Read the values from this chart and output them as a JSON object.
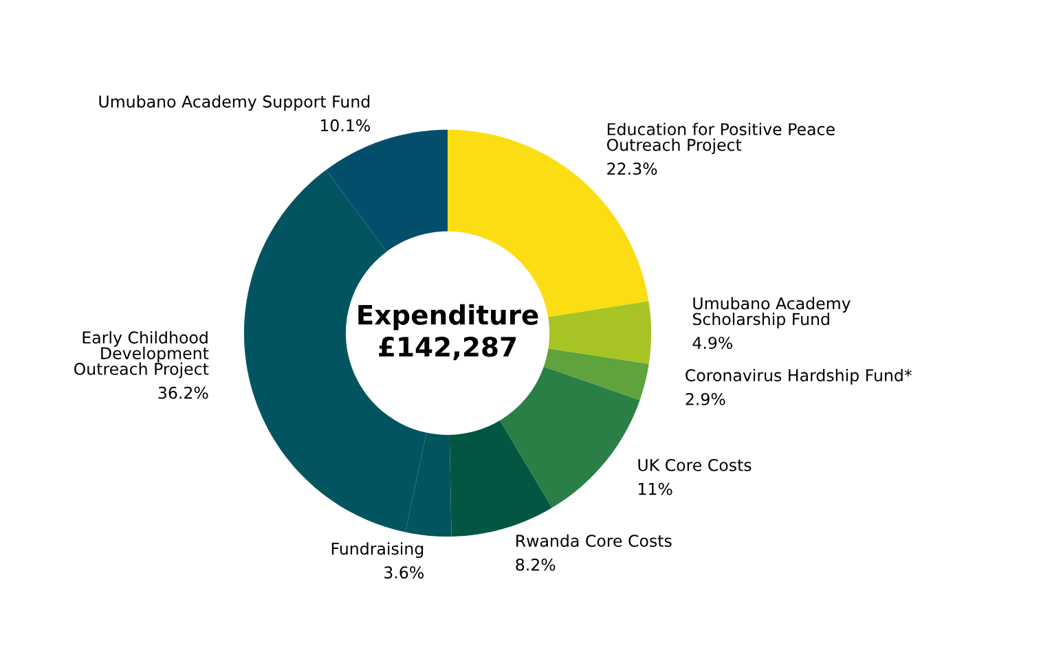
{
  "chart_data": {
    "type": "donut",
    "title": "Expenditure\n£142,287",
    "categories": [
      "Education for Positive Peace\nOutreach Project",
      "Umubano Academy\nScholarship Fund",
      "Coronavirus Hardship Fund*",
      "UK Core Costs",
      "Rwanda Core Costs",
      "Fundraising",
      "Early Childhood\nDevelopment\nOutreach Project",
      "Umubano Academy Support Fund"
    ],
    "values": [
      22.3,
      4.9,
      2.9,
      11,
      8.2,
      3.6,
      36.2,
      10.1
    ],
    "value_labels": [
      "22.3%",
      "4.9%",
      "2.9%",
      "11%",
      "8.2%",
      "3.6%",
      "36.2%",
      "10.1%"
    ],
    "colors": [
      "#fbdd13",
      "#a8c424",
      "#5fa33c",
      "#2a7f47",
      "#035742",
      "#02545e",
      "#025560",
      "#034f6b"
    ]
  }
}
